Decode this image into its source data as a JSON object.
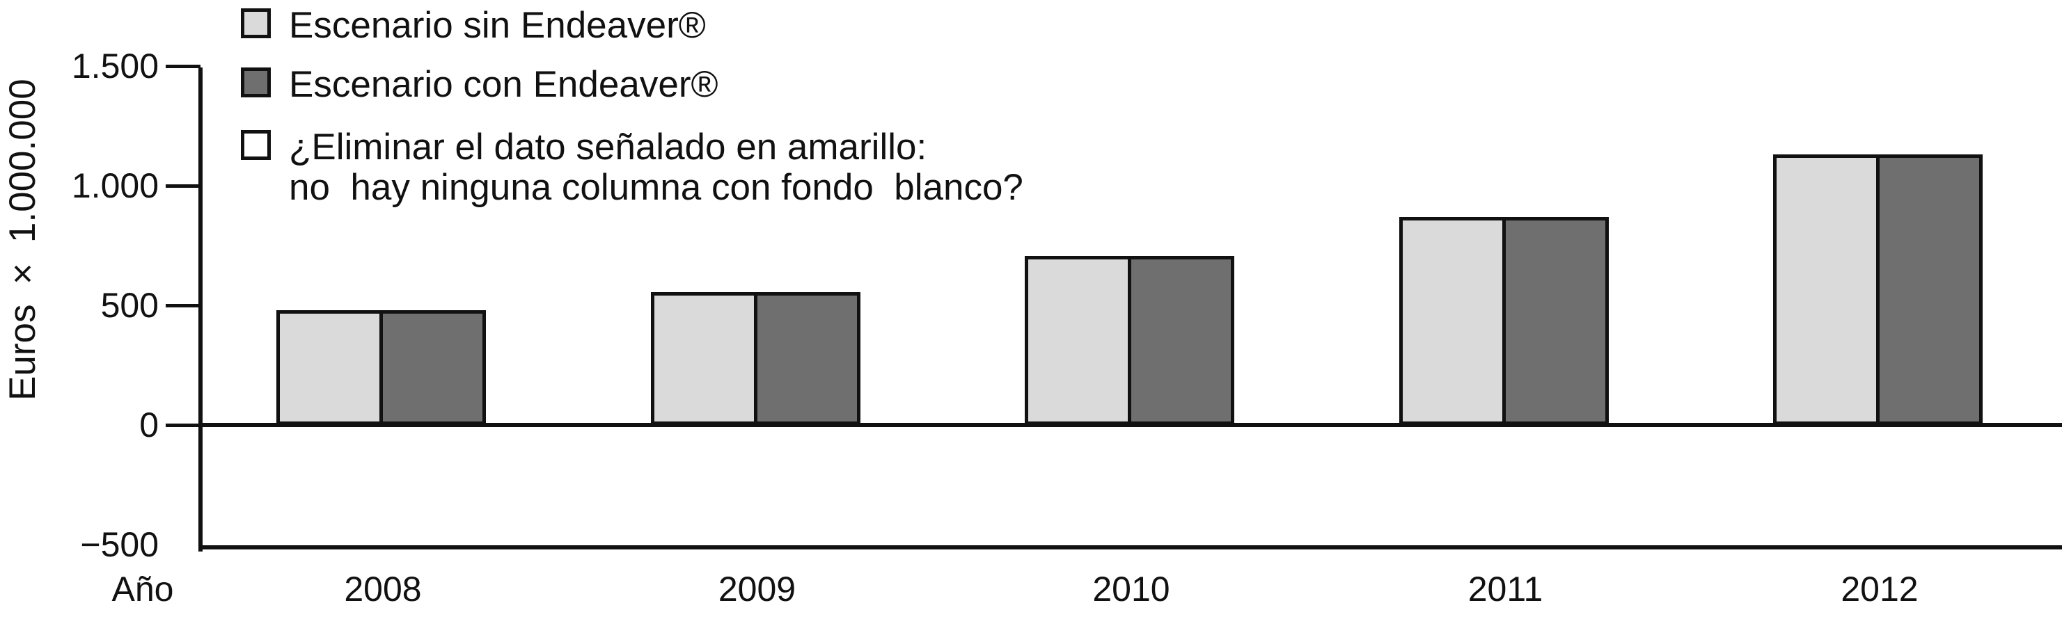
{
  "colors": {
    "series_light": "#dadada",
    "series_dark": "#6f6f6f",
    "legend_white": "#ffffff",
    "line": "#111111",
    "background": "#ffffff"
  },
  "legend": {
    "items": [
      {
        "swatch": "light-gray",
        "label": "Escenario sin Endeaver®"
      },
      {
        "swatch": "dark-gray",
        "label": "Escenario con Endeaver®"
      },
      {
        "swatch": "white",
        "label": "¿Eliminar el dato señalado en amarillo:\nno  hay ninguna columna con fondo  blanco?"
      }
    ]
  },
  "chart_data": {
    "type": "bar",
    "categories": [
      "2008",
      "2009",
      "2010",
      "2011",
      "2012"
    ],
    "series": [
      {
        "name": "Escenario sin Endeaver®",
        "color": "#dadada",
        "values": [
          480,
          555,
          705,
          870,
          1130
        ]
      },
      {
        "name": "Escenario con Endeaver®",
        "color": "#6f6f6f",
        "values": [
          480,
          555,
          705,
          870,
          1130
        ]
      }
    ],
    "title": "",
    "xlabel": "Año",
    "ylabel": "Euros × 1.000.000",
    "ylim": [
      -500,
      1500
    ],
    "yticks": [
      1500,
      1000,
      500,
      0,
      -500
    ],
    "ytick_labels": [
      "1.500",
      "1.000",
      "500",
      "0",
      "−500"
    ],
    "grid": false,
    "legend_position": "top-left"
  }
}
